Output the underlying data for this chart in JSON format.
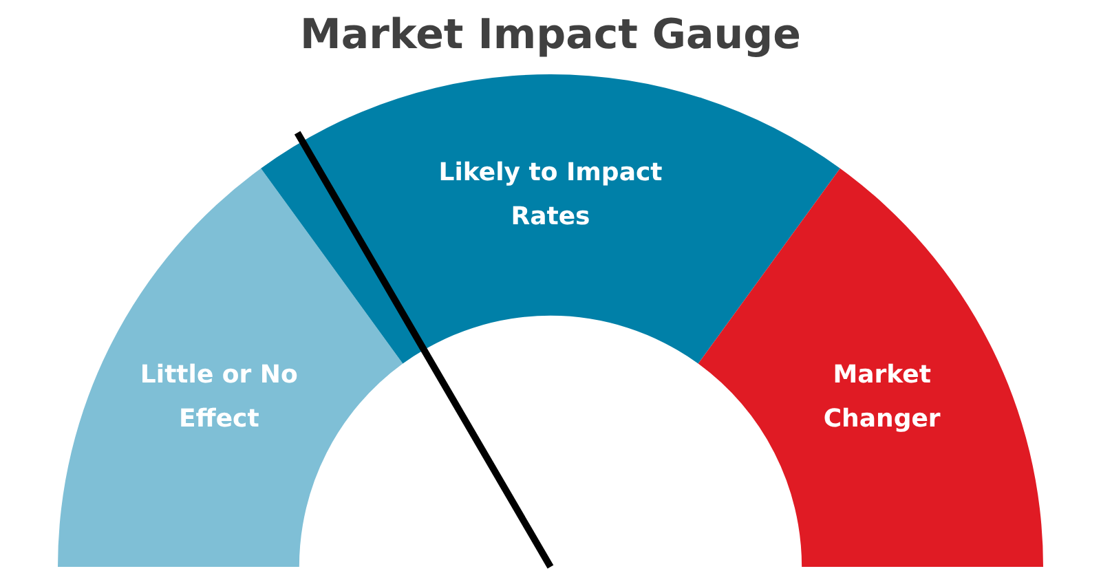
{
  "chart_data": {
    "type": "donut",
    "title": "Market Impact Gauge",
    "categories": [
      "Little or No Effect",
      "Likely to Impact Rates",
      "Market Changer"
    ],
    "values": [
      30,
      40,
      30
    ],
    "colors": [
      "#7fbfd6",
      "#0080a8",
      "#e01b24"
    ],
    "needle": "Likely to Impact Rates"
  }
}
